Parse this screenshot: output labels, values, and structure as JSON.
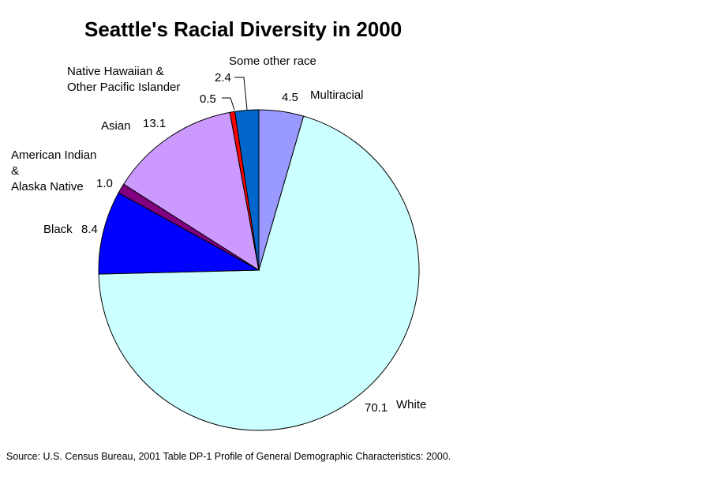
{
  "title": "Seattle's Racial Diversity in 2000",
  "source": "Source: U.S. Census Bureau, 2001 Table DP-1 Profile of General Demographic Characteristics: 2000.",
  "chart_data": {
    "type": "pie",
    "title": "Seattle's Racial Diversity in 2000",
    "start_angle": "12 o'clock",
    "direction": "clockwise",
    "units": "percent",
    "total": 100.0,
    "slices": [
      {
        "label": "Multiracial",
        "value": 4.5,
        "display_value": "4.5",
        "color": "#9999FF"
      },
      {
        "label": "White",
        "value": 70.1,
        "display_value": "70.1",
        "color": "#CCFFFF"
      },
      {
        "label": "Black",
        "value": 8.4,
        "display_value": "8.4",
        "color": "#0000FF"
      },
      {
        "label": "American Indian\n&\nAlaska Native",
        "value": 1.0,
        "display_value": "1.0",
        "color": "#800080"
      },
      {
        "label": "Asian",
        "value": 13.1,
        "display_value": "13.1",
        "color": "#CC99FF"
      },
      {
        "label": "Native Hawaiian &\nOther Pacific Islander",
        "value": 0.5,
        "display_value": "0.5",
        "color": "#FF0000"
      },
      {
        "label": "Some other race",
        "value": 2.4,
        "display_value": "2.4",
        "color": "#0066CC"
      }
    ],
    "outline_color": "#000000",
    "legend": "none (direct labels with leader lines)"
  }
}
